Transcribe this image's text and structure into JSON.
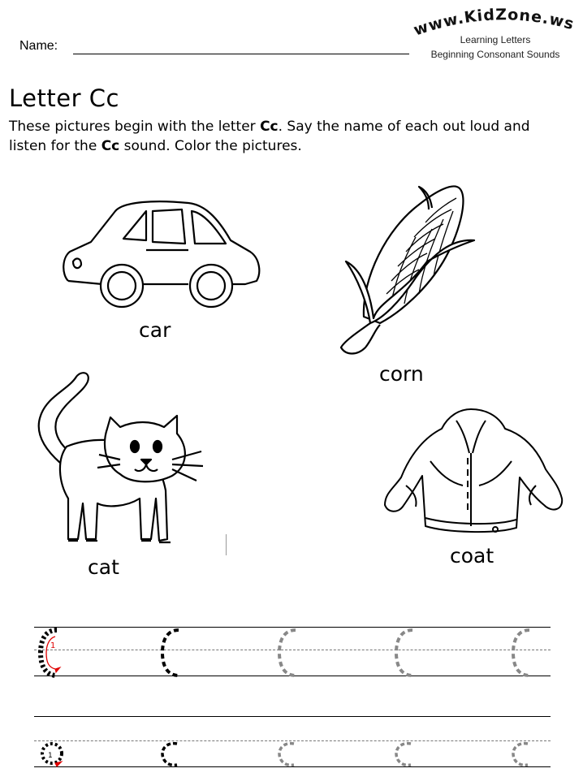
{
  "header": {
    "name_label": "Name:",
    "brand": "www.KidZone.ws",
    "subtitle_1": "Learning Letters",
    "subtitle_2": "Beginning Consonant Sounds"
  },
  "title": "Letter Cc",
  "instructions": {
    "part1": "These pictures begin with the letter ",
    "bold1": "Cc",
    "part2": ".  Say the name of each out loud and listen for the ",
    "bold2": "Cc",
    "part3": " sound.  Color the pictures."
  },
  "pictures": [
    {
      "word": "car"
    },
    {
      "word": "corn"
    },
    {
      "word": "cat"
    },
    {
      "word": "coat"
    }
  ],
  "tracing": {
    "stroke_number": "1",
    "guide_color": "#e00000",
    "trace_dark": "#000000",
    "trace_light": "#888888"
  }
}
